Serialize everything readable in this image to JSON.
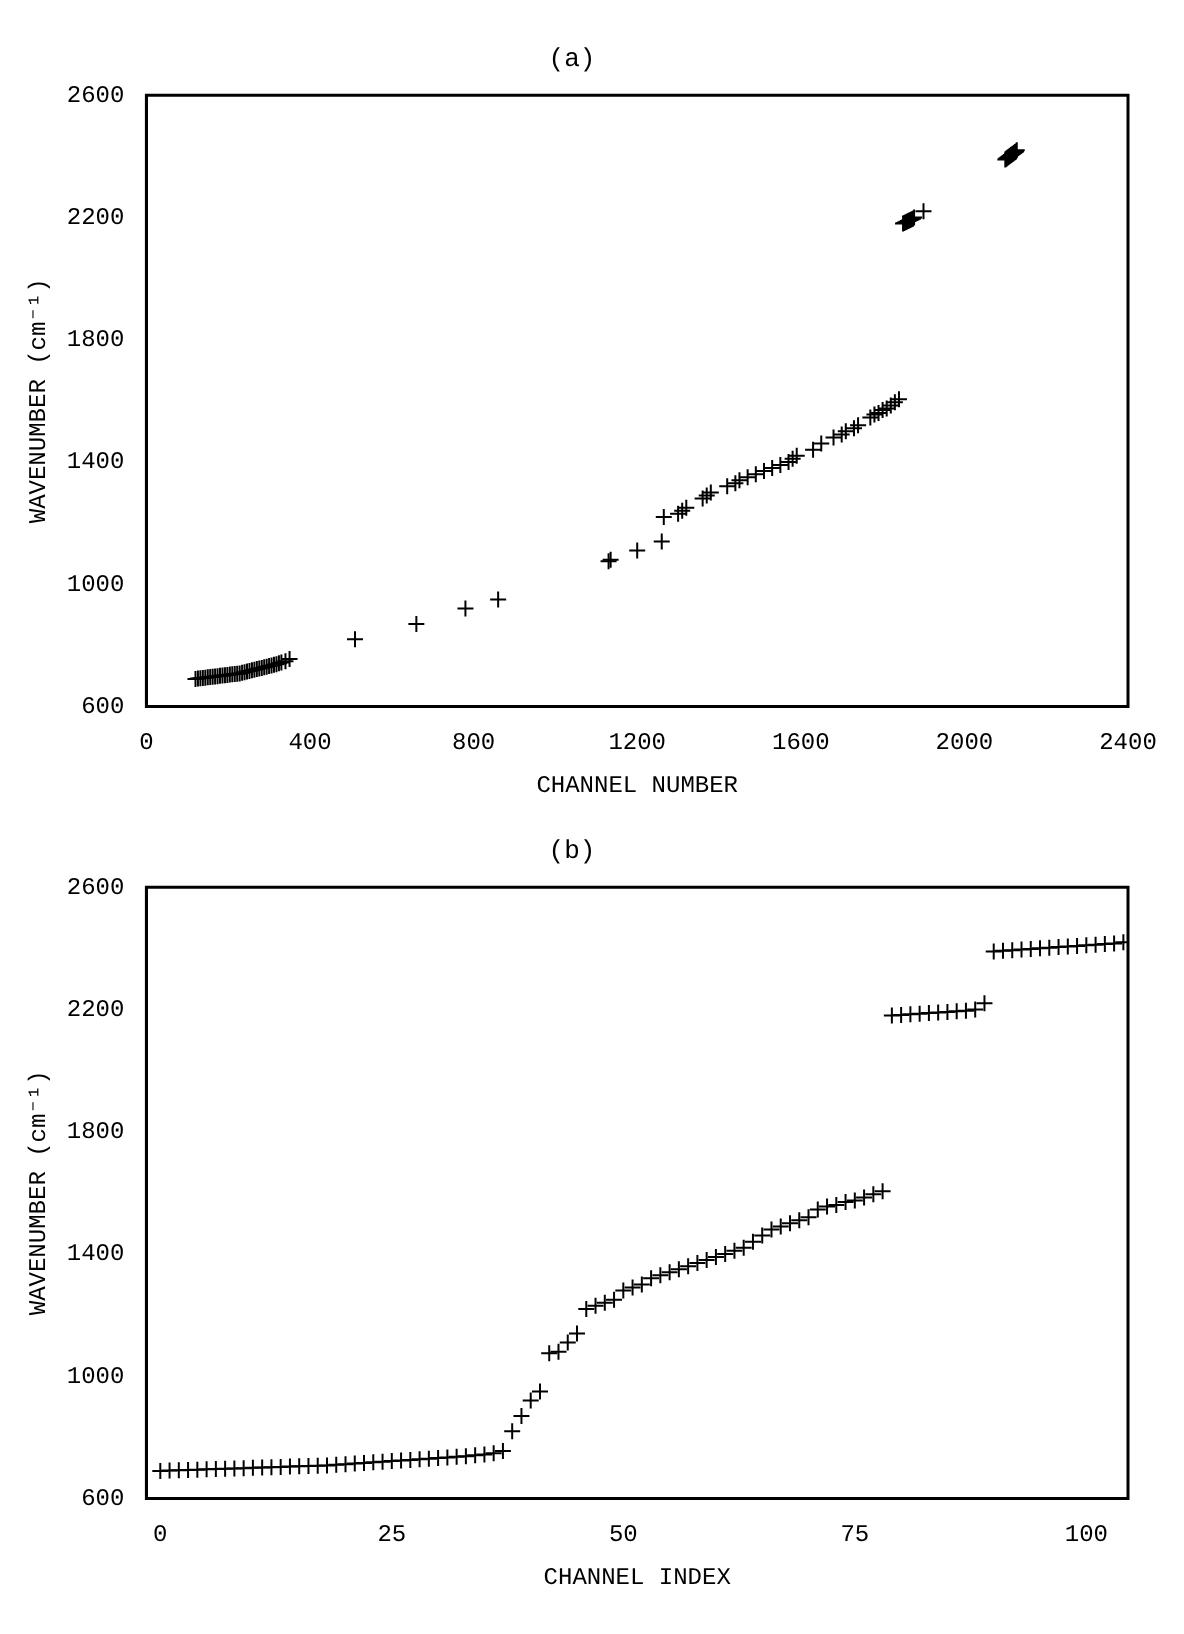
{
  "chart_data": [
    {
      "type": "scatter",
      "title": "(a)",
      "xlabel": "CHANNEL NUMBER",
      "ylabel": "WAVENUMBER (cm⁻¹)",
      "marker": "cross",
      "grid": false,
      "legend": false,
      "xlim": [
        0,
        2400
      ],
      "xticks": [
        0,
        400,
        800,
        1200,
        1600,
        2000,
        2400
      ],
      "ylim": [
        600,
        2600
      ],
      "yticks": [
        600,
        1000,
        1400,
        1800,
        2200,
        2600
      ],
      "series": [
        {
          "color": "#000000",
          "x": [
            120,
            126,
            132,
            138,
            144,
            150,
            156,
            162,
            168,
            174,
            180,
            186,
            192,
            198,
            204,
            210,
            216,
            222,
            228,
            234,
            240,
            246,
            252,
            258,
            264,
            270,
            276,
            282,
            288,
            294,
            300,
            306,
            312,
            318,
            324,
            330,
            340,
            350,
            510,
            660,
            780,
            860,
            1130,
            1135,
            1200,
            1260,
            1265,
            1300,
            1310,
            1320,
            1360,
            1370,
            1380,
            1420,
            1440,
            1450,
            1470,
            1490,
            1510,
            1530,
            1550,
            1570,
            1580,
            1590,
            1630,
            1650,
            1680,
            1700,
            1710,
            1730,
            1740,
            1770,
            1780,
            1790,
            1800,
            1810,
            1820,
            1830,
            1840,
            1850,
            1853,
            1856,
            1859,
            1862,
            1865,
            1868,
            1871,
            1874,
            1877,
            1900,
            2100,
            2102,
            2104,
            2106,
            2108,
            2110,
            2112,
            2114,
            2116,
            2118,
            2120,
            2122,
            2124,
            2126,
            2128
          ],
          "values": [
            690,
            691,
            692,
            693,
            694,
            695,
            696,
            697,
            698,
            699,
            700,
            701,
            702,
            703,
            704,
            705,
            706,
            707,
            708,
            710,
            712,
            714,
            716,
            718,
            720,
            722,
            724,
            726,
            728,
            730,
            732,
            734,
            736,
            738,
            741,
            744,
            748,
            755,
            820,
            870,
            920,
            950,
            1075,
            1080,
            1110,
            1140,
            1220,
            1230,
            1240,
            1250,
            1280,
            1290,
            1300,
            1320,
            1330,
            1340,
            1350,
            1360,
            1370,
            1380,
            1390,
            1400,
            1410,
            1420,
            1440,
            1460,
            1480,
            1490,
            1500,
            1510,
            1520,
            1545,
            1555,
            1560,
            1570,
            1575,
            1585,
            1595,
            1605,
            2180,
            2182,
            2184,
            2186,
            2188,
            2190,
            2192,
            2194,
            2196,
            2200,
            2220,
            2390,
            2392,
            2394,
            2396,
            2398,
            2400,
            2402,
            2404,
            2406,
            2408,
            2410,
            2412,
            2414,
            2416,
            2420
          ]
        }
      ]
    },
    {
      "type": "scatter",
      "title": "(b)",
      "xlabel": "CHANNEL INDEX",
      "ylabel": "WAVENUMBER (cm⁻¹)",
      "marker": "cross",
      "grid": false,
      "legend": false,
      "xlim": [
        -1.5,
        104.5
      ],
      "xticks": [
        0,
        25,
        50,
        75,
        100
      ],
      "ylim": [
        600,
        2600
      ],
      "yticks": [
        600,
        1000,
        1400,
        1800,
        2200,
        2600
      ],
      "series": [
        {
          "color": "#000000",
          "x": [
            0,
            1,
            2,
            3,
            4,
            5,
            6,
            7,
            8,
            9,
            10,
            11,
            12,
            13,
            14,
            15,
            16,
            17,
            18,
            19,
            20,
            21,
            22,
            23,
            24,
            25,
            26,
            27,
            28,
            29,
            30,
            31,
            32,
            33,
            34,
            35,
            36,
            37,
            38,
            39,
            40,
            41,
            42,
            43,
            44,
            45,
            46,
            47,
            48,
            49,
            50,
            51,
            52,
            53,
            54,
            55,
            56,
            57,
            58,
            59,
            60,
            61,
            62,
            63,
            64,
            65,
            66,
            67,
            68,
            69,
            70,
            71,
            72,
            73,
            74,
            75,
            76,
            77,
            78,
            79,
            80,
            81,
            82,
            83,
            84,
            85,
            86,
            87,
            88,
            89,
            90,
            91,
            92,
            93,
            94,
            95,
            96,
            97,
            98,
            99,
            100,
            101,
            102,
            103,
            104
          ],
          "values": [
            690,
            691,
            692,
            693,
            694,
            695,
            696,
            697,
            698,
            699,
            700,
            701,
            702,
            703,
            704,
            705,
            706,
            707,
            708,
            710,
            712,
            714,
            716,
            718,
            720,
            722,
            724,
            726,
            728,
            730,
            732,
            734,
            736,
            738,
            741,
            744,
            748,
            755,
            820,
            870,
            920,
            950,
            1075,
            1080,
            1110,
            1140,
            1220,
            1230,
            1240,
            1250,
            1280,
            1290,
            1300,
            1320,
            1330,
            1340,
            1350,
            1360,
            1370,
            1380,
            1390,
            1400,
            1410,
            1420,
            1440,
            1460,
            1480,
            1490,
            1500,
            1510,
            1520,
            1545,
            1555,
            1560,
            1570,
            1575,
            1585,
            1595,
            1605,
            2180,
            2182,
            2184,
            2186,
            2188,
            2190,
            2192,
            2194,
            2196,
            2200,
            2220,
            2390,
            2392,
            2394,
            2396,
            2398,
            2400,
            2402,
            2404,
            2406,
            2408,
            2410,
            2412,
            2414,
            2416,
            2420
          ]
        }
      ]
    }
  ]
}
